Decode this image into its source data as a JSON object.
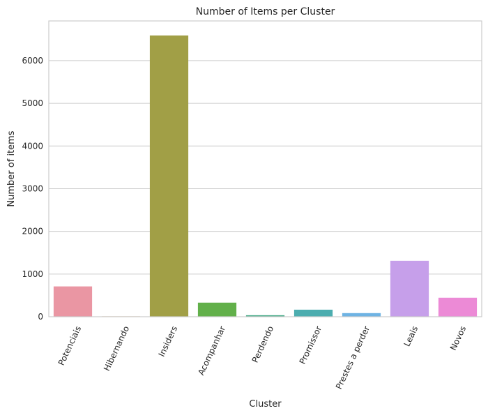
{
  "chart_data": {
    "type": "bar",
    "title": "Number of Items per Cluster",
    "xlabel": "Cluster",
    "ylabel": "Number of items",
    "categories": [
      "Potenciais",
      "Hibernando",
      "Insiders",
      "Acompanhar",
      "Perdendo",
      "Promissor",
      "Prestes a perder",
      "Leais",
      "Novos"
    ],
    "values": [
      710,
      10,
      6590,
      330,
      35,
      165,
      85,
      1310,
      445
    ],
    "colors": [
      "#ea96a3",
      "#d8a25c",
      "#a19f46",
      "#62b04a",
      "#49ab89",
      "#4cadaf",
      "#6fb3e3",
      "#c69fea",
      "#ec8ad6"
    ],
    "ylim": [
      0,
      6930
    ],
    "yticks": [
      0,
      1000,
      2000,
      3000,
      4000,
      5000,
      6000
    ],
    "grid": true,
    "legend": "none"
  }
}
